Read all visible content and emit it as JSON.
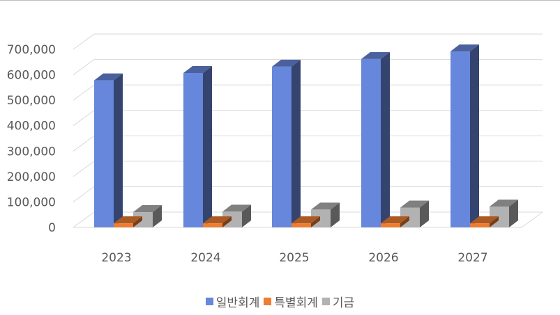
{
  "chart_data": {
    "type": "bar",
    "categories": [
      "2023",
      "2024",
      "2025",
      "2026",
      "2027"
    ],
    "series": [
      {
        "name": "일반회계",
        "values": [
          578000,
          607000,
          632000,
          662000,
          692000
        ],
        "color": "#6787dc"
      },
      {
        "name": "특별회계",
        "values": [
          16000,
          16000,
          16000,
          16000,
          16000
        ],
        "color": "#ed7d31"
      },
      {
        "name": "기금",
        "values": [
          60000,
          62000,
          70000,
          78000,
          82000
        ],
        "color": "#b2b2b2"
      }
    ],
    "ylim": [
      0,
      700000
    ],
    "yticks": [
      0,
      100000,
      200000,
      300000,
      400000,
      500000,
      600000,
      700000
    ],
    "ytick_labels": [
      "0",
      "100,000",
      "200,000",
      "300,000",
      "400,000",
      "500,000",
      "600,000",
      "700,000"
    ],
    "grid": true,
    "legend_position": "bottom",
    "style": "3d-clustered-column"
  }
}
